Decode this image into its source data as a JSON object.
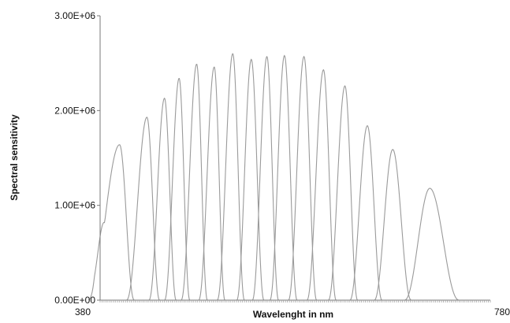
{
  "chart_data": {
    "type": "line",
    "title": "",
    "xlabel": "Wavelenght in nm",
    "ylabel": "Spectral sensitivity",
    "xlim": [
      380,
      780
    ],
    "ylim": [
      0,
      3000000
    ],
    "x_ticks": [
      380,
      780
    ],
    "x_tick_labels": [
      "380",
      "780"
    ],
    "y_ticks": [
      0,
      1000000,
      2000000,
      3000000
    ],
    "y_tick_labels": [
      "0.00E+00",
      "1.00E+06",
      "2.00E+06",
      "3.00E+06"
    ],
    "grid": false,
    "legend": "none",
    "line_color": "#9a9a9a",
    "axis_color": "#7a7a7a",
    "x_minor_tick_step": 2,
    "series_shape": "band-pass curves",
    "series": [
      {
        "peak_wavelength": 400,
        "peak_value": 1640000,
        "shoulder_wavelength": 384,
        "shoulder_value": 820000,
        "lower_edge": 368,
        "upper_edge": 415
      },
      {
        "peak_wavelength": 428,
        "peak_value": 1930000,
        "lower_edge": 407,
        "upper_edge": 441
      },
      {
        "peak_wavelength": 446,
        "peak_value": 2130000,
        "lower_edge": 430,
        "upper_edge": 458
      },
      {
        "peak_wavelength": 461,
        "peak_value": 2340000,
        "lower_edge": 446,
        "upper_edge": 472
      },
      {
        "peak_wavelength": 479,
        "peak_value": 2490000,
        "lower_edge": 463,
        "upper_edge": 490
      },
      {
        "peak_wavelength": 497,
        "peak_value": 2460000,
        "lower_edge": 481,
        "upper_edge": 508
      },
      {
        "peak_wavelength": 516,
        "peak_value": 2600000,
        "lower_edge": 500,
        "upper_edge": 528
      },
      {
        "peak_wavelength": 535,
        "peak_value": 2540000,
        "lower_edge": 520,
        "upper_edge": 548
      },
      {
        "peak_wavelength": 551,
        "peak_value": 2570000,
        "lower_edge": 536,
        "upper_edge": 563
      },
      {
        "peak_wavelength": 569,
        "peak_value": 2580000,
        "lower_edge": 554,
        "upper_edge": 582
      },
      {
        "peak_wavelength": 589,
        "peak_value": 2570000,
        "lower_edge": 573,
        "upper_edge": 602
      },
      {
        "peak_wavelength": 609,
        "peak_value": 2430000,
        "lower_edge": 592,
        "upper_edge": 622
      },
      {
        "peak_wavelength": 631,
        "peak_value": 2260000,
        "lower_edge": 614,
        "upper_edge": 644
      },
      {
        "peak_wavelength": 654,
        "peak_value": 1840000,
        "lower_edge": 636,
        "upper_edge": 669
      },
      {
        "peak_wavelength": 680,
        "peak_value": 1590000,
        "lower_edge": 661,
        "upper_edge": 699
      },
      {
        "peak_wavelength": 718,
        "peak_value": 1180000,
        "lower_edge": 692,
        "upper_edge": 748
      }
    ]
  }
}
